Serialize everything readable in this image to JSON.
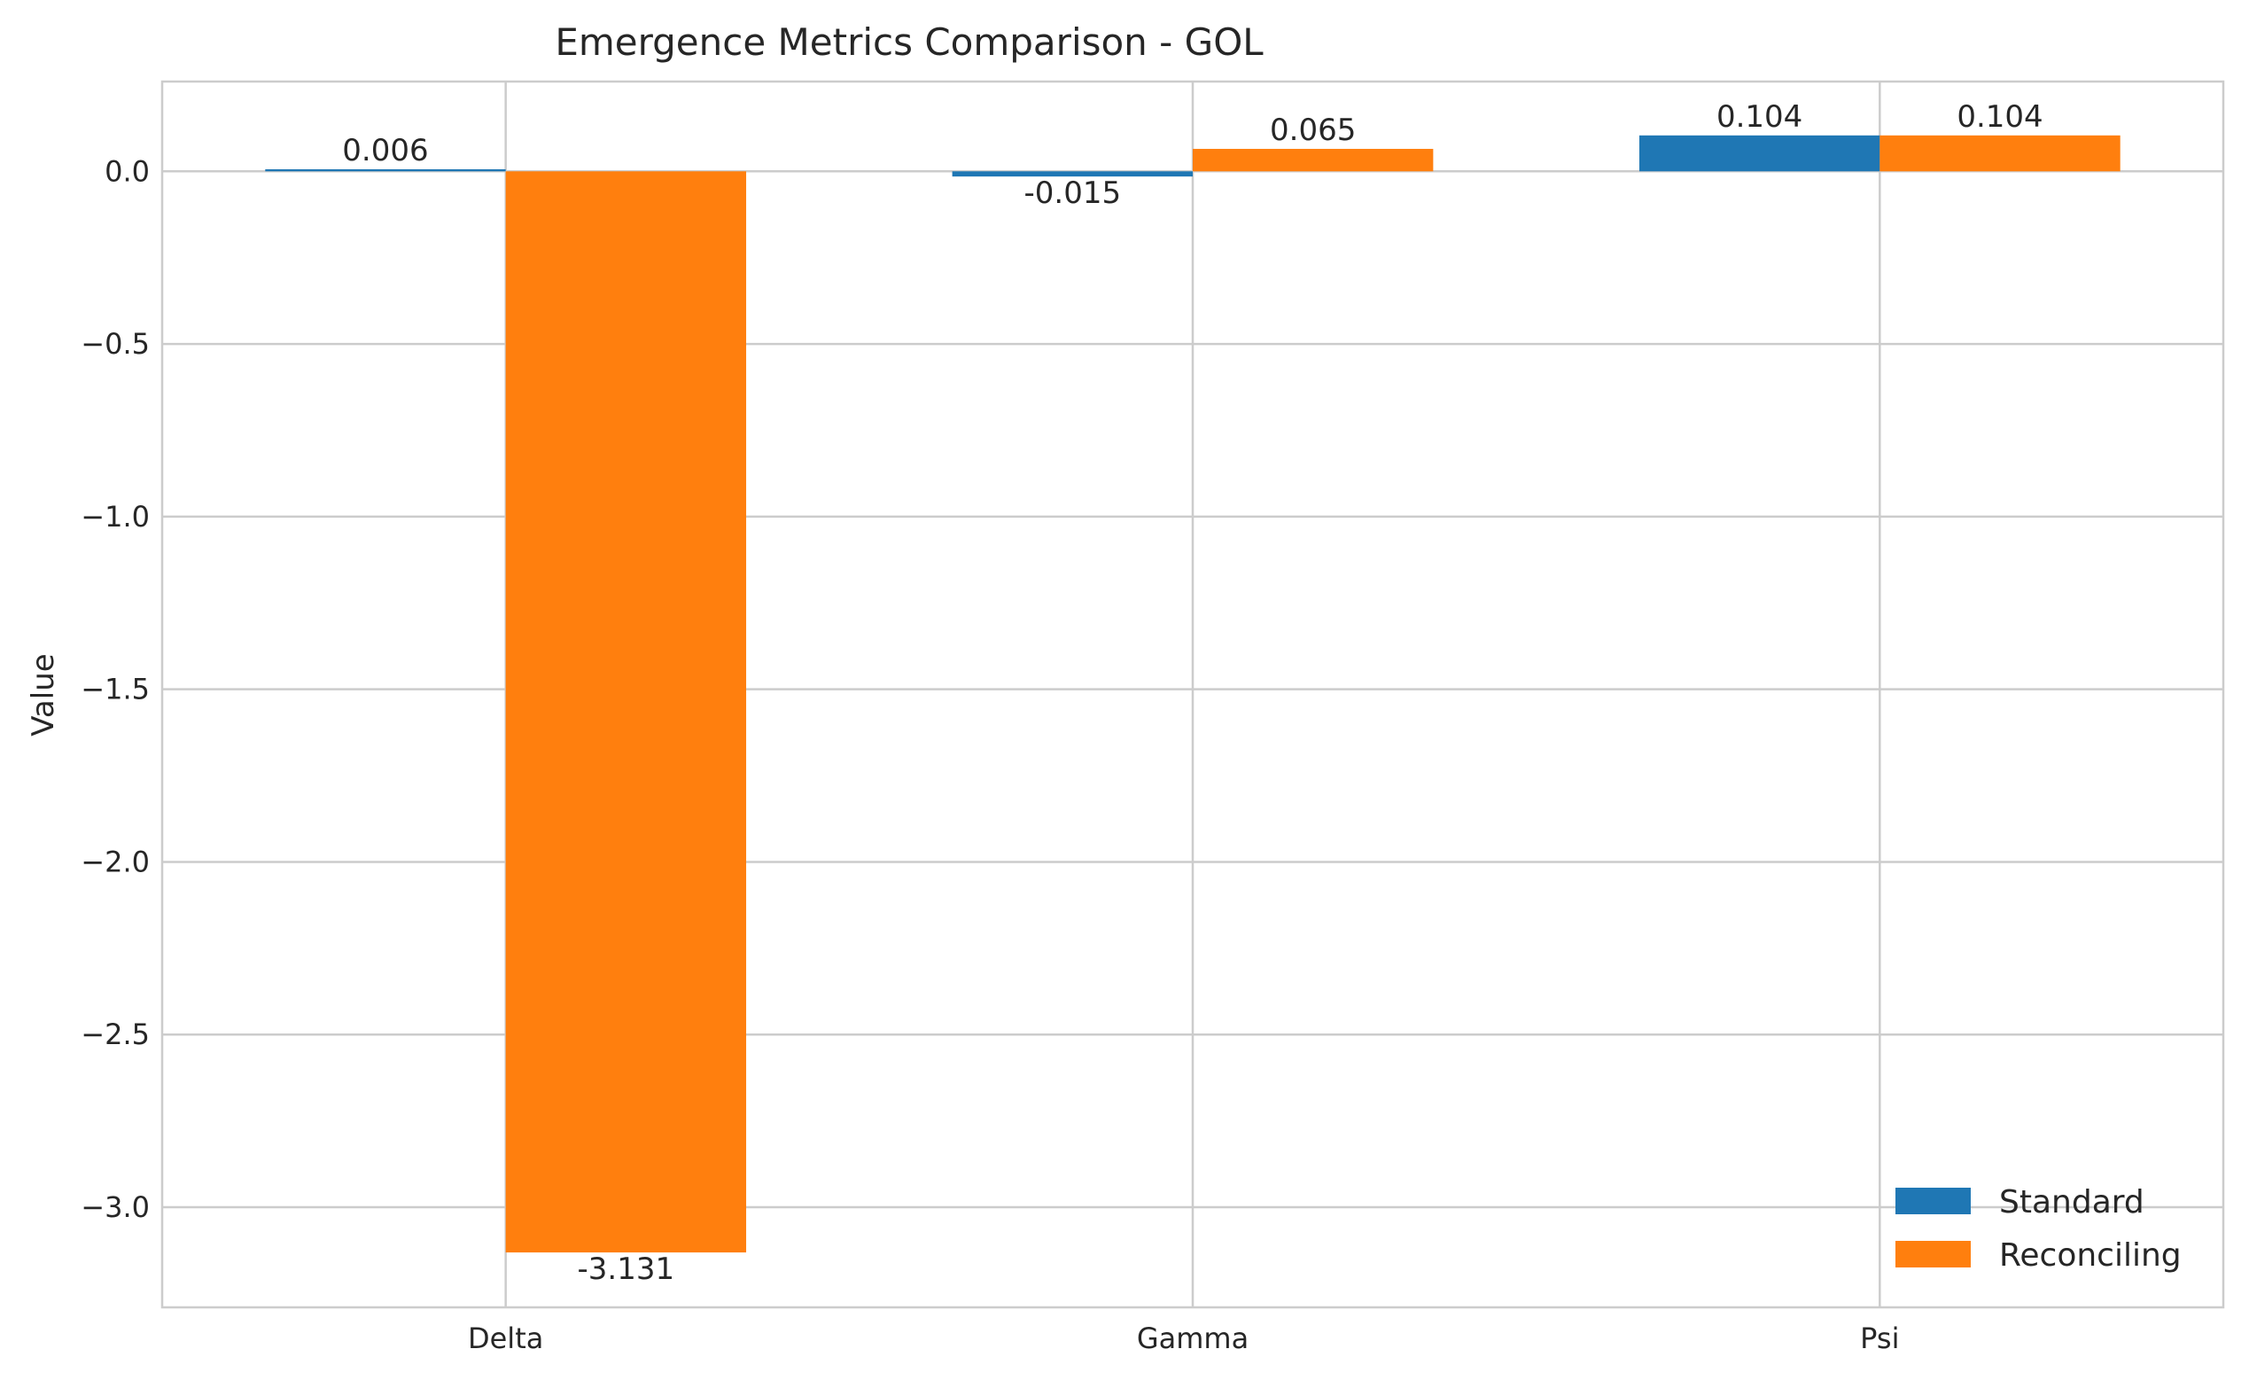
{
  "chart_data": {
    "type": "bar",
    "title": "Emergence Metrics Comparison - GOL",
    "xlabel": "",
    "ylabel": "Value",
    "categories": [
      "Delta",
      "Gamma",
      "Psi"
    ],
    "series": [
      {
        "name": "Standard",
        "values": [
          0.006,
          -0.015,
          0.104
        ],
        "labels": [
          "0.006",
          "-0.015",
          "0.104"
        ],
        "color": "#1f77b4"
      },
      {
        "name": "Reconciling",
        "values": [
          -3.131,
          0.065,
          0.104
        ],
        "labels": [
          "-3.131",
          "0.065",
          "0.104"
        ],
        "color": "#ff7f0e"
      }
    ],
    "ylim": [
      -3.29,
      0.26
    ],
    "yticks": [
      0.0,
      -0.5,
      -1.0,
      -1.5,
      -2.0,
      -2.5,
      -3.0
    ],
    "ytick_labels": [
      "0.0",
      "−0.5",
      "−1.0",
      "−1.5",
      "−2.0",
      "−2.5",
      "−3.0"
    ],
    "grid": true,
    "legend_position": "lower-right"
  }
}
